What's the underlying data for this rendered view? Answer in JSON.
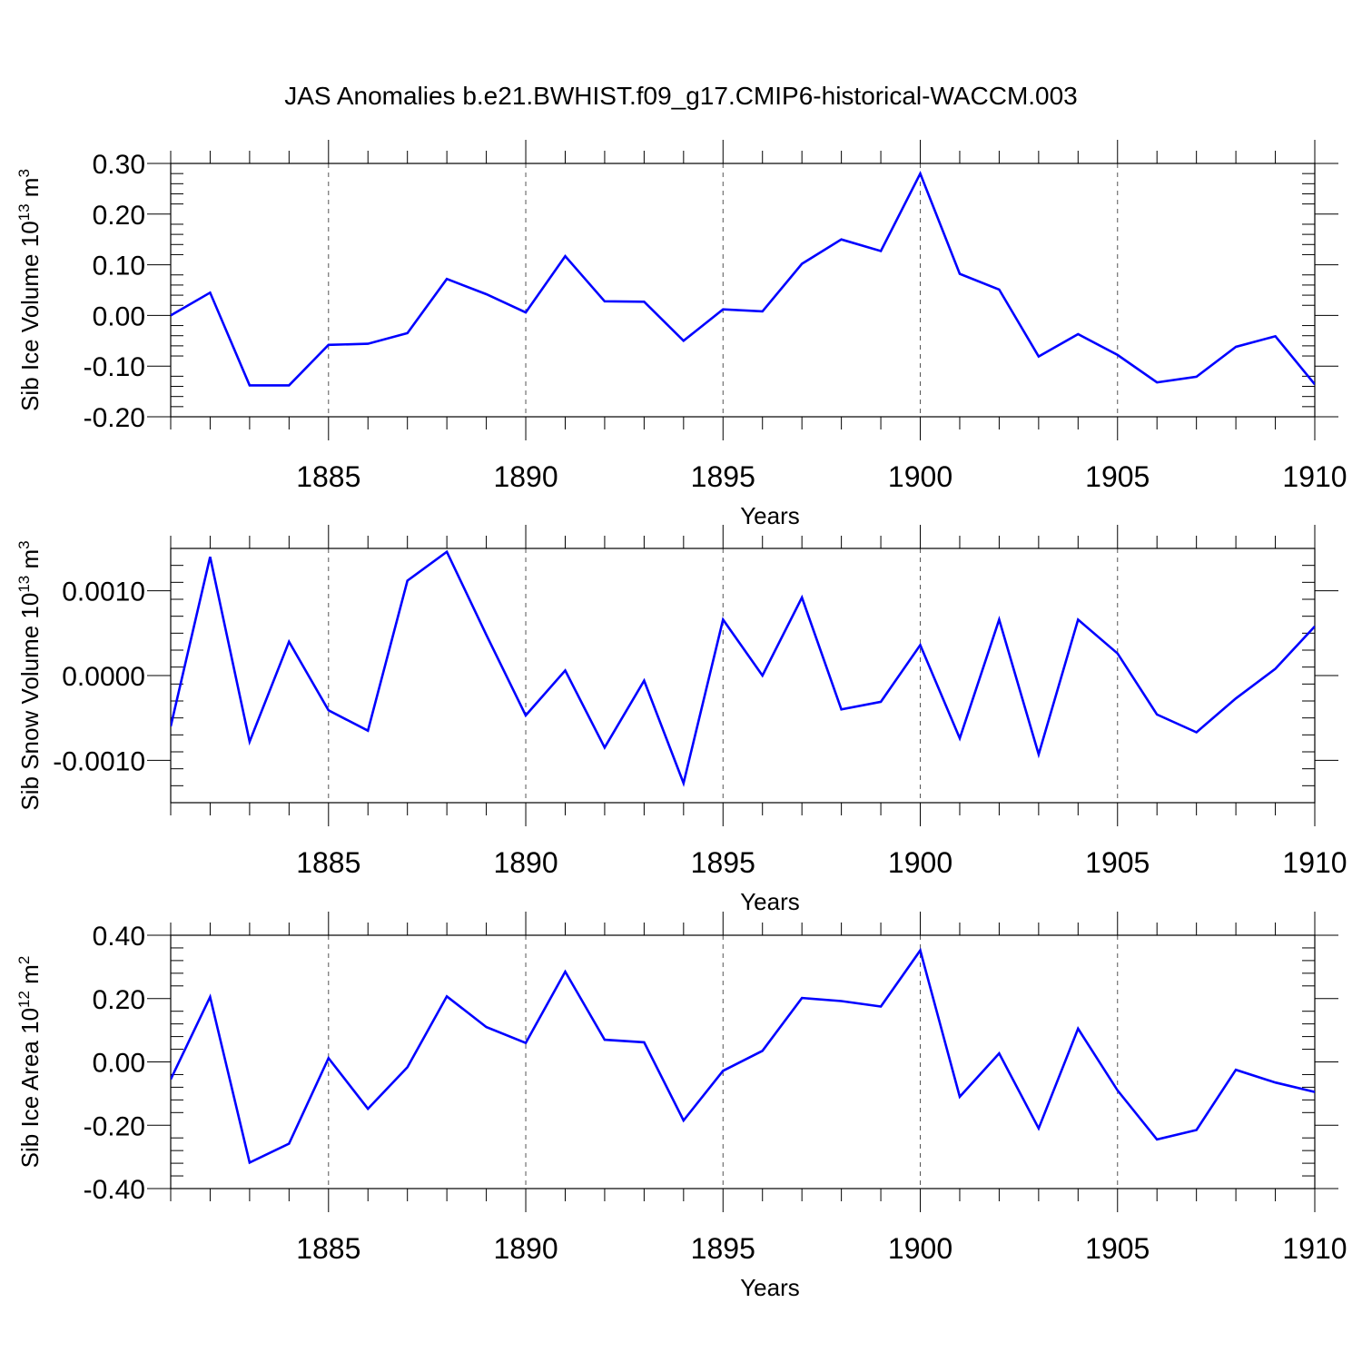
{
  "figure_title": "JAS Anomalies b.e21.BWHIST.f09_g17.CMIP6-historical-WACCM.003",
  "line_color": "#0000ff",
  "chart_data": [
    {
      "type": "line",
      "title": "JAS Anomalies b.e21.BWHIST.f09_g17.CMIP6-historical-WACCM.003",
      "xlabel": "Years",
      "ylabel": "Sib Ice Volume 10",
      "ylabel_exp": "13",
      "ylabel_unit": " m",
      "ylabel_unit_exp": "3",
      "xlim": [
        1881,
        1910
      ],
      "ylim": [
        -0.2,
        0.3
      ],
      "xticks": [
        1885,
        1890,
        1895,
        1900,
        1905,
        1910
      ],
      "xtick_labels": [
        "1885",
        "1890",
        "1895",
        "1900",
        "1905",
        "1910"
      ],
      "yticks": [
        0.3,
        0.2,
        0.1,
        0.0,
        -0.1,
        -0.2
      ],
      "ytick_labels": [
        "0.30",
        "0.20",
        "0.10",
        "0.00",
        "-0.10",
        "-0.20"
      ],
      "grid_x": [
        1885,
        1890,
        1895,
        1900,
        1905
      ],
      "x": [
        1881,
        1882,
        1883,
        1884,
        1885,
        1886,
        1887,
        1888,
        1889,
        1890,
        1891,
        1892,
        1893,
        1894,
        1895,
        1896,
        1897,
        1898,
        1899,
        1900,
        1901,
        1902,
        1903,
        1904,
        1905,
        1906,
        1907,
        1908,
        1909,
        1910
      ],
      "series": [
        {
          "name": "Sib Ice Volume",
          "values": [
            0.0,
            0.045,
            -0.138,
            -0.138,
            -0.058,
            -0.056,
            -0.035,
            0.072,
            0.042,
            0.006,
            0.117,
            0.028,
            0.027,
            -0.05,
            0.012,
            0.008,
            0.102,
            0.15,
            0.127,
            0.28,
            0.082,
            0.051,
            -0.081,
            -0.037,
            -0.078,
            -0.132,
            -0.121,
            -0.062,
            -0.041,
            -0.136
          ]
        }
      ]
    },
    {
      "type": "line",
      "xlabel": "Years",
      "ylabel": "Sib Snow Volume 10",
      "ylabel_exp": "13",
      "ylabel_unit": " m",
      "ylabel_unit_exp": "3",
      "xlim": [
        1881,
        1910
      ],
      "ylim": [
        -0.0015,
        0.0015
      ],
      "xticks": [
        1885,
        1890,
        1895,
        1900,
        1905,
        1910
      ],
      "xtick_labels": [
        "1885",
        "1890",
        "1895",
        "1900",
        "1905",
        "1910"
      ],
      "yticks": [
        0.001,
        0.0,
        -0.001
      ],
      "ytick_labels": [
        "0.0010",
        "0.0000",
        "-0.0010"
      ],
      "grid_x": [
        1885,
        1890,
        1895,
        1900,
        1905
      ],
      "x": [
        1881,
        1882,
        1883,
        1884,
        1885,
        1886,
        1887,
        1888,
        1889,
        1890,
        1891,
        1892,
        1893,
        1894,
        1895,
        1896,
        1897,
        1898,
        1899,
        1900,
        1901,
        1902,
        1903,
        1904,
        1905,
        1906,
        1907,
        1908,
        1909,
        1910
      ],
      "series": [
        {
          "name": "Sib Snow Volume",
          "values": [
            -0.0006,
            0.0014,
            -0.00078,
            0.0004,
            -0.00041,
            -0.00065,
            0.00112,
            0.00146,
            0.00048,
            -0.00047,
            6e-05,
            -0.00085,
            -6e-05,
            -0.00127,
            0.00066,
            0.0,
            0.00092,
            -0.0004,
            -0.00031,
            0.00036,
            -0.00074,
            0.00066,
            -0.00093,
            0.00066,
            0.00026,
            -0.00046,
            -0.00067,
            -0.00027,
            8e-05,
            0.00058
          ]
        }
      ]
    },
    {
      "type": "line",
      "xlabel": "Years",
      "ylabel": "Sib Ice Area 10",
      "ylabel_exp": "12",
      "ylabel_unit": " m",
      "ylabel_unit_exp": "2",
      "xlim": [
        1881,
        1910
      ],
      "ylim": [
        -0.4,
        0.4
      ],
      "xticks": [
        1885,
        1890,
        1895,
        1900,
        1905,
        1910
      ],
      "xtick_labels": [
        "1885",
        "1890",
        "1895",
        "1900",
        "1905",
        "1910"
      ],
      "yticks": [
        0.4,
        0.2,
        0.0,
        -0.2,
        -0.4
      ],
      "ytick_labels": [
        "0.40",
        "0.20",
        "0.00",
        "-0.20",
        "-0.40"
      ],
      "grid_x": [
        1885,
        1890,
        1895,
        1900,
        1905
      ],
      "x": [
        1881,
        1882,
        1883,
        1884,
        1885,
        1886,
        1887,
        1888,
        1889,
        1890,
        1891,
        1892,
        1893,
        1894,
        1895,
        1896,
        1897,
        1898,
        1899,
        1900,
        1901,
        1902,
        1903,
        1904,
        1905,
        1906,
        1907,
        1908,
        1909,
        1910
      ],
      "series": [
        {
          "name": "Sib Ice Area",
          "values": [
            -0.055,
            0.205,
            -0.318,
            -0.258,
            0.012,
            -0.148,
            -0.017,
            0.207,
            0.11,
            0.06,
            0.285,
            0.07,
            0.062,
            -0.185,
            -0.028,
            0.035,
            0.202,
            0.192,
            0.175,
            0.352,
            -0.11,
            0.027,
            -0.21,
            0.105,
            -0.09,
            -0.245,
            -0.215,
            -0.025,
            -0.065,
            -0.095
          ]
        }
      ]
    }
  ]
}
